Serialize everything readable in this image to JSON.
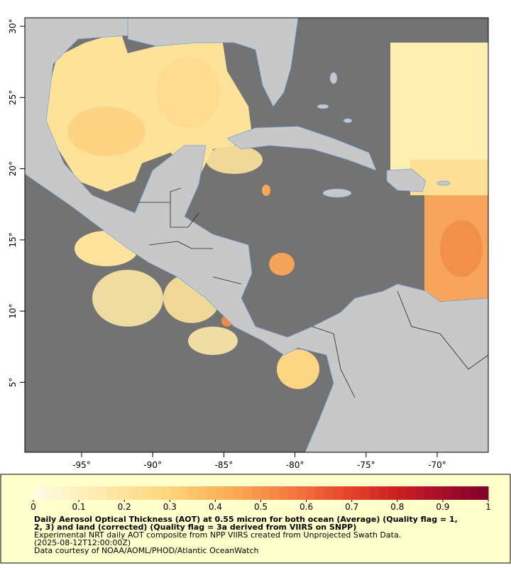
{
  "map": {
    "lon_ticks": [
      {
        "value": -95,
        "label": "-95°"
      },
      {
        "value": -90,
        "label": "-90°"
      },
      {
        "value": -85,
        "label": "-85°"
      },
      {
        "value": -80,
        "label": "-80°"
      },
      {
        "value": -75,
        "label": "-75°"
      },
      {
        "value": -70,
        "label": "-70°"
      }
    ],
    "lat_ticks": [
      {
        "value": 30,
        "label": "30°"
      },
      {
        "value": 25,
        "label": "25°"
      },
      {
        "value": 20,
        "label": "20°"
      },
      {
        "value": 15,
        "label": "15°"
      },
      {
        "value": 10,
        "label": "10°"
      },
      {
        "value": 5,
        "label": "5°"
      }
    ]
  },
  "colorbar": {
    "range": [
      0,
      1
    ],
    "ticks": [
      0,
      0.1,
      0.2,
      0.3,
      0.4,
      0.5,
      0.6,
      0.7,
      0.8,
      0.9,
      1
    ],
    "stops": [
      "#fffde6",
      "#feefbd",
      "#fde49c",
      "#fdd47c",
      "#fbb65c",
      "#f8934a",
      "#f26b3a",
      "#e4412a",
      "#cc1f22",
      "#a50d2a",
      "#80002a"
    ]
  },
  "caption": {
    "title_lines": [
      "Daily Aerosol Optical Thickness (AOT) at 0.55 micron for both ocean (Average) (Quality flag = 1,",
      "2, 3) and land (corrected) (Quality flag = 3a derived from VIIRS on SNPP)"
    ],
    "lines": [
      "Experimental NRT daily AOT composite from NPP VIIRS created from Unprojected Swath Data.",
      "(2025-08-12T12:00:00Z)",
      "Data courtesy of NOAA/AOML/PHOD/Atlantic OceanWatch"
    ]
  }
}
